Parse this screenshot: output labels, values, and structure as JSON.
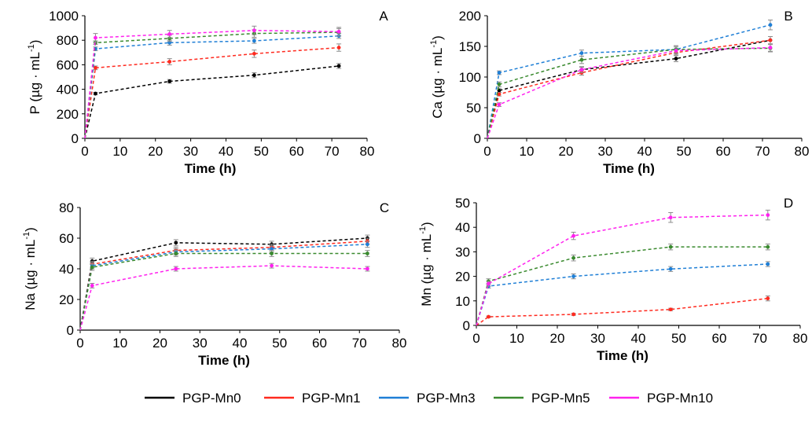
{
  "colors": {
    "PGP-Mn0": "#000000",
    "PGP-Mn1": "#ff2a1f",
    "PGP-Mn3": "#1f7fd6",
    "PGP-Mn5": "#3a8a2f",
    "PGP-Mn10": "#ff22ee"
  },
  "legend": [
    "PGP-Mn0",
    "PGP-Mn1",
    "PGP-Mn3",
    "PGP-Mn5",
    "PGP-Mn10"
  ],
  "chart_data": [
    {
      "type": "line",
      "panel": "A",
      "xlabel": "Time (h)",
      "ylabel_main": "P",
      "ylabel_unit": "(µg · mL",
      "ylabel_exp": "-1",
      "ylabel_close": ")",
      "xlim": [
        0,
        80
      ],
      "ylim": [
        0,
        1000
      ],
      "xticks": [
        0,
        10,
        20,
        30,
        40,
        50,
        60,
        70,
        80
      ],
      "yticks": [
        0,
        200,
        400,
        600,
        800,
        1000
      ],
      "x": [
        0,
        3,
        24,
        48,
        72
      ],
      "series": [
        {
          "name": "PGP-Mn0",
          "values": [
            0,
            365,
            465,
            515,
            590
          ],
          "err": [
            0,
            10,
            15,
            20,
            20
          ]
        },
        {
          "name": "PGP-Mn1",
          "values": [
            0,
            575,
            625,
            690,
            740
          ],
          "err": [
            0,
            15,
            25,
            30,
            30
          ]
        },
        {
          "name": "PGP-Mn3",
          "values": [
            0,
            730,
            780,
            795,
            835
          ],
          "err": [
            0,
            15,
            20,
            20,
            20
          ]
        },
        {
          "name": "PGP-Mn5",
          "values": [
            0,
            780,
            815,
            855,
            865
          ],
          "err": [
            0,
            15,
            25,
            30,
            30
          ]
        },
        {
          "name": "PGP-Mn10",
          "values": [
            0,
            820,
            850,
            880,
            870
          ],
          "err": [
            0,
            35,
            30,
            35,
            35
          ]
        }
      ]
    },
    {
      "type": "line",
      "panel": "B",
      "xlabel": "Time (h)",
      "ylabel_main": "Ca",
      "ylabel_unit": "(µg · mL",
      "ylabel_exp": "-1",
      "ylabel_close": ")",
      "xlim": [
        0,
        80
      ],
      "ylim": [
        0,
        200
      ],
      "xticks": [
        0,
        10,
        20,
        30,
        40,
        50,
        60,
        70,
        80
      ],
      "yticks": [
        0,
        50,
        100,
        150,
        200
      ],
      "x": [
        0,
        3,
        24,
        48,
        72
      ],
      "series": [
        {
          "name": "PGP-Mn0",
          "values": [
            0,
            78,
            112,
            130,
            160
          ],
          "err": [
            0,
            3,
            4,
            5,
            6
          ]
        },
        {
          "name": "PGP-Mn1",
          "values": [
            0,
            72,
            107,
            140,
            160
          ],
          "err": [
            0,
            3,
            4,
            5,
            6
          ]
        },
        {
          "name": "PGP-Mn3",
          "values": [
            0,
            107,
            139,
            145,
            185
          ],
          "err": [
            0,
            3,
            5,
            6,
            8
          ]
        },
        {
          "name": "PGP-Mn5",
          "values": [
            0,
            88,
            128,
            145,
            147
          ],
          "err": [
            0,
            4,
            6,
            6,
            6
          ]
        },
        {
          "name": "PGP-Mn10",
          "values": [
            0,
            55,
            112,
            143,
            148
          ],
          "err": [
            0,
            3,
            5,
            6,
            6
          ]
        }
      ]
    },
    {
      "type": "line",
      "panel": "C",
      "xlabel": "Time (h)",
      "ylabel_main": "Na",
      "ylabel_unit": "(µg · mL",
      "ylabel_exp": "-1",
      "ylabel_close": ")",
      "xlim": [
        0,
        80
      ],
      "ylim": [
        0,
        80
      ],
      "xticks": [
        0,
        10,
        20,
        30,
        40,
        50,
        60,
        70,
        80
      ],
      "yticks": [
        0,
        20,
        40,
        60,
        80
      ],
      "x": [
        0,
        3,
        24,
        48,
        72
      ],
      "series": [
        {
          "name": "PGP-Mn0",
          "values": [
            0,
            45,
            57,
            56,
            60
          ],
          "err": [
            0,
            2,
            2,
            2,
            2
          ]
        },
        {
          "name": "PGP-Mn1",
          "values": [
            0,
            43,
            52,
            54,
            58
          ],
          "err": [
            0,
            2,
            2,
            2,
            2
          ]
        },
        {
          "name": "PGP-Mn3",
          "values": [
            0,
            42,
            51,
            53,
            56
          ],
          "err": [
            0,
            2,
            2,
            2,
            2
          ]
        },
        {
          "name": "PGP-Mn5",
          "values": [
            0,
            41,
            50,
            50,
            50
          ],
          "err": [
            0,
            2,
            2,
            2,
            2
          ]
        },
        {
          "name": "PGP-Mn10",
          "values": [
            0,
            29,
            40,
            42,
            40
          ],
          "err": [
            0,
            1.5,
            1.5,
            1.5,
            1.5
          ]
        }
      ]
    },
    {
      "type": "line",
      "panel": "D",
      "xlabel": "Time (h)",
      "ylabel_main": "Mn",
      "ylabel_unit": "(µg · mL",
      "ylabel_exp": "-1",
      "ylabel_close": ")",
      "xlim": [
        0,
        80
      ],
      "ylim": [
        0,
        50
      ],
      "xticks": [
        0,
        10,
        20,
        30,
        40,
        50,
        60,
        70,
        80
      ],
      "yticks": [
        0,
        10,
        20,
        30,
        40,
        50
      ],
      "x": [
        0,
        3,
        24,
        48,
        72
      ],
      "series": [
        {
          "name": "PGP-Mn1",
          "values": [
            0,
            3.5,
            4.5,
            6.5,
            11
          ],
          "err": [
            0,
            0.3,
            0.4,
            0.5,
            1
          ]
        },
        {
          "name": "PGP-Mn3",
          "values": [
            0,
            16,
            20,
            23,
            25
          ],
          "err": [
            0,
            0.8,
            1,
            1,
            1
          ]
        },
        {
          "name": "PGP-Mn5",
          "values": [
            0,
            18,
            27.5,
            32,
            32
          ],
          "err": [
            0,
            1,
            1.2,
            1.2,
            1.2
          ]
        },
        {
          "name": "PGP-Mn10",
          "values": [
            0,
            17,
            36.5,
            44,
            45
          ],
          "err": [
            0,
            1,
            1.5,
            2,
            2
          ]
        }
      ]
    }
  ]
}
